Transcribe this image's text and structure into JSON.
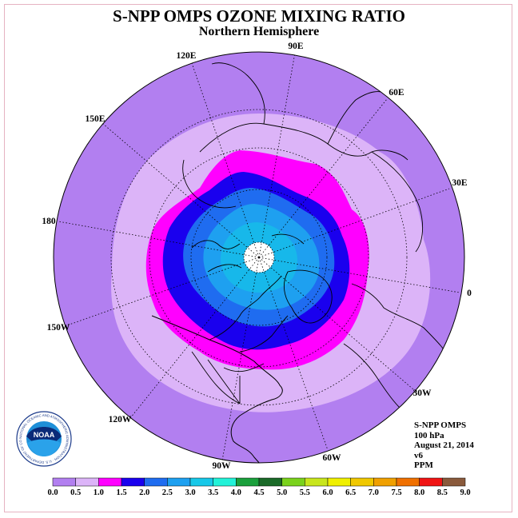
{
  "header": {
    "title": "S-NPP OMPS OZONE MIXING RATIO",
    "subtitle": "Northern Hemisphere"
  },
  "map": {
    "projection": "north polar stereographic",
    "longitude_labels": [
      "90E",
      "60E",
      "30E",
      "0",
      "30W",
      "60W",
      "90W",
      "120W",
      "150W",
      "180",
      "150E",
      "120E"
    ],
    "graticule": "dotted"
  },
  "info": {
    "instrument": "S-NPP OMPS",
    "level": "100 hPa",
    "date": "August 21, 2014",
    "version": "v6",
    "units": "PPM"
  },
  "colorbar": {
    "ticks": [
      "0.0",
      "0.5",
      "1.0",
      "1.5",
      "2.0",
      "2.5",
      "3.0",
      "3.5",
      "4.0",
      "4.5",
      "5.0",
      "5.5",
      "6.0",
      "6.5",
      "7.0",
      "7.5",
      "8.0",
      "8.5",
      "9.0"
    ],
    "colors": [
      "#b27ff0",
      "#dcb4f8",
      "#ff00ff",
      "#1a00ee",
      "#1f6cf0",
      "#1ea0f0",
      "#17c8e8",
      "#22f2d8",
      "#1aa03c",
      "#1a6a28",
      "#7ad21c",
      "#c8e61c",
      "#f0f000",
      "#f0c800",
      "#f0a000",
      "#f07000",
      "#f01414",
      "#8a5a3c"
    ]
  },
  "logo": {
    "text": "NOAA",
    "ring_text": "NATIONAL OCEANIC AND ATMOSPHERIC ADMINISTRATION · U.S. DEPARTMENT OF COMMERCE"
  }
}
